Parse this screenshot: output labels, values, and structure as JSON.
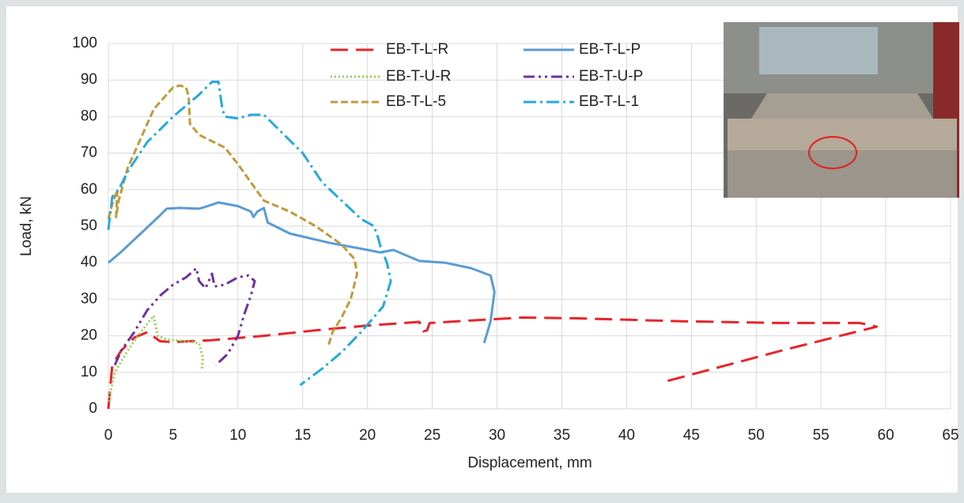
{
  "chart_data": {
    "type": "line",
    "xlabel": "Displacement, mm",
    "ylabel": "Load, kN",
    "xlim": [
      0,
      65
    ],
    "ylim": [
      0,
      100
    ],
    "xticks": [
      0,
      5,
      10,
      15,
      20,
      25,
      30,
      35,
      40,
      45,
      50,
      55,
      60,
      65
    ],
    "yticks": [
      0,
      10,
      20,
      30,
      40,
      50,
      60,
      70,
      80,
      90,
      100
    ],
    "grid": true,
    "series": [
      {
        "name": "EB-T-L-R",
        "color": "#e8242b",
        "dash": "22,10",
        "x": [
          0,
          0.3,
          1,
          2,
          3,
          4,
          5,
          8,
          12,
          16,
          20,
          24,
          24.3,
          24.6,
          24.8,
          28,
          32,
          36,
          44,
          52,
          58,
          59.3,
          52,
          43
        ],
        "values": [
          0,
          12,
          16,
          19.5,
          21,
          18.5,
          18.3,
          18.8,
          20,
          21.5,
          22.8,
          23.8,
          21.2,
          21.5,
          23.5,
          24.2,
          25,
          24.8,
          24,
          23.5,
          23.5,
          22.5,
          16,
          7.5
        ]
      },
      {
        "name": "EB-T-L-P",
        "color": "#5b9bd5",
        "dash": "none",
        "x": [
          0,
          1,
          2.5,
          4,
          4.5,
          5.5,
          7,
          7.5,
          8.5,
          10,
          11,
          11.2,
          11.5,
          12,
          12.3,
          14,
          17,
          20,
          21,
          22,
          23,
          24,
          26,
          28,
          29.5,
          29.8,
          29.5,
          29
        ],
        "values": [
          40,
          43,
          48,
          53,
          54.8,
          55,
          54.8,
          55.3,
          56.5,
          55.5,
          54,
          52.5,
          54,
          55,
          51,
          48,
          45.5,
          43.5,
          42.8,
          43.5,
          42,
          40.5,
          40,
          38.5,
          36.5,
          32,
          24,
          18
        ]
      },
      {
        "name": "EB-T-U-R",
        "color": "#92d050",
        "dash": "2,3",
        "x": [
          0,
          0.5,
          1.5,
          2.5,
          3.5,
          3.8,
          4.5,
          6,
          7,
          7.3,
          7.2
        ],
        "values": [
          2,
          10,
          16,
          21,
          25.5,
          20,
          19,
          18.5,
          18,
          14,
          10.5
        ]
      },
      {
        "name": "EB-T-U-P",
        "color": "#7030a0",
        "dash": "14,5,3,5,3,5",
        "x": [
          0.5,
          1,
          2,
          3,
          4,
          5,
          6,
          6.8,
          7,
          7.5,
          8,
          8.2,
          9,
          10,
          10.8,
          11.3,
          11,
          10.5,
          10,
          9.2,
          8.3
        ],
        "values": [
          12,
          16,
          21,
          27,
          31,
          34,
          36,
          38.5,
          35,
          33,
          37,
          33.5,
          34,
          36,
          36.5,
          35,
          31,
          26,
          20,
          15,
          12
        ]
      },
      {
        "name": "EB-T-L-5",
        "color": "#c19a3b",
        "dash": "9,4",
        "x": [
          0,
          0.3,
          0.7,
          0.6,
          0.8,
          1.5,
          2.5,
          3.5,
          4.5,
          5,
          5.5,
          6,
          6.2,
          6.3,
          7,
          9,
          10,
          11,
          12,
          13,
          14,
          16,
          18,
          19,
          19.2,
          18.7,
          18,
          17.3,
          17
        ],
        "values": [
          52,
          56,
          60,
          52.5,
          57,
          66,
          74,
          82,
          86,
          88,
          88.5,
          88,
          85.5,
          78,
          75,
          71.5,
          67,
          62,
          57,
          55.5,
          54,
          50,
          45,
          41,
          37,
          30,
          25,
          21,
          17.5
        ]
      },
      {
        "name": "EB-T-L-1",
        "color": "#25a9e0",
        "dash": "16,5,3,5",
        "x": [
          0,
          0.3,
          0.8,
          1.5,
          3,
          5,
          7,
          8,
          8.5,
          8.8,
          9,
          10,
          11,
          12,
          13,
          15,
          16.5,
          18,
          19.5,
          20.5,
          20.8,
          21,
          21.5,
          21.8,
          21.2,
          19.5,
          18,
          16.5,
          14.8
        ],
        "values": [
          49,
          58,
          60,
          65,
          73,
          80,
          86,
          89.5,
          89.5,
          82,
          80,
          79.5,
          80.5,
          80.5,
          77,
          70,
          62,
          57,
          52,
          50,
          47,
          44.5,
          40,
          35,
          28,
          21,
          15.5,
          11,
          6.5
        ]
      }
    ]
  }
}
